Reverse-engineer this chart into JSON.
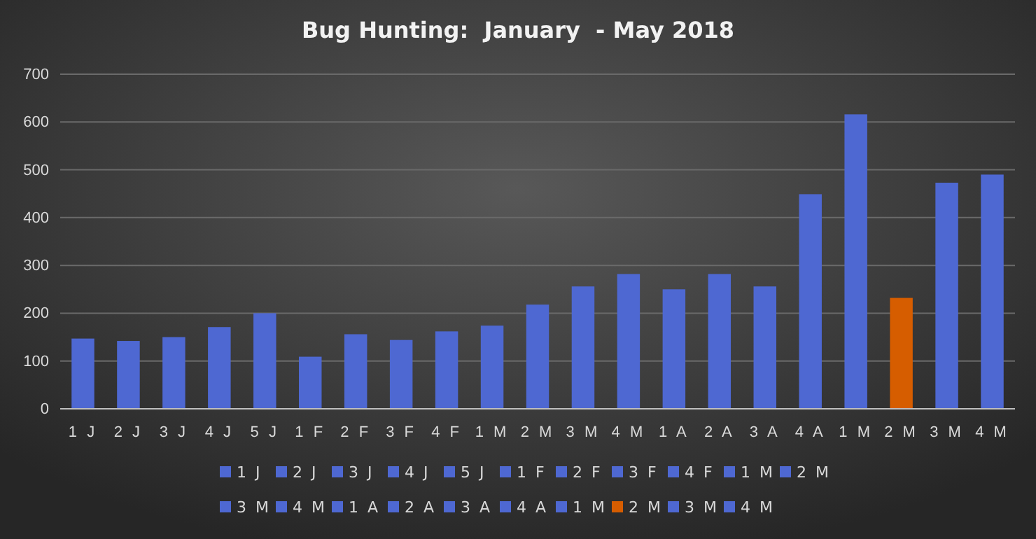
{
  "chart_data": {
    "type": "bar",
    "title": "Bug Hunting:  January  - May 2018",
    "stacked": true,
    "categories": [
      "1 J",
      "2 J",
      "3 J",
      "4 J",
      "5 J",
      "1 F",
      "2 F",
      "3 F",
      "4 F",
      "1 M",
      "2 M",
      "3 M",
      "4 M",
      "1 A",
      "2 A",
      "3 A",
      "4 A",
      "1 M",
      "2 M",
      "3 M",
      "4 M"
    ],
    "series": [
      {
        "name": "1 J",
        "color": "#4e68d2",
        "values": [
          147,
          null,
          null,
          null,
          null,
          null,
          null,
          null,
          null,
          null,
          null,
          null,
          null,
          null,
          null,
          null,
          null,
          null,
          null,
          null,
          null
        ]
      },
      {
        "name": "2 J",
        "color": "#4e68d2",
        "values": [
          null,
          142,
          null,
          null,
          null,
          null,
          null,
          null,
          null,
          null,
          null,
          null,
          null,
          null,
          null,
          null,
          null,
          null,
          null,
          null,
          null
        ]
      },
      {
        "name": "3 J",
        "color": "#4e68d2",
        "values": [
          null,
          null,
          150,
          null,
          null,
          null,
          null,
          null,
          null,
          null,
          null,
          null,
          null,
          null,
          null,
          null,
          null,
          null,
          null,
          null,
          null
        ]
      },
      {
        "name": "4 J",
        "color": "#4e68d2",
        "values": [
          null,
          null,
          null,
          171,
          null,
          null,
          null,
          null,
          null,
          null,
          null,
          null,
          null,
          null,
          null,
          null,
          null,
          null,
          null,
          null,
          null
        ]
      },
      {
        "name": "5 J",
        "color": "#4e68d2",
        "values": [
          null,
          null,
          null,
          null,
          200,
          null,
          null,
          null,
          null,
          null,
          null,
          null,
          null,
          null,
          null,
          null,
          null,
          null,
          null,
          null,
          null
        ]
      },
      {
        "name": "1 F",
        "color": "#4e68d2",
        "values": [
          null,
          null,
          null,
          null,
          null,
          109,
          null,
          null,
          null,
          null,
          null,
          null,
          null,
          null,
          null,
          null,
          null,
          null,
          null,
          null,
          null
        ]
      },
      {
        "name": "2 F",
        "color": "#4e68d2",
        "values": [
          null,
          null,
          null,
          null,
          null,
          null,
          156,
          null,
          null,
          null,
          null,
          null,
          null,
          null,
          null,
          null,
          null,
          null,
          null,
          null,
          null
        ]
      },
      {
        "name": "3 F",
        "color": "#4e68d2",
        "values": [
          null,
          null,
          null,
          null,
          null,
          null,
          null,
          144,
          null,
          null,
          null,
          null,
          null,
          null,
          null,
          null,
          null,
          null,
          null,
          null,
          null
        ]
      },
      {
        "name": "4 F",
        "color": "#4e68d2",
        "values": [
          null,
          null,
          null,
          null,
          null,
          null,
          null,
          null,
          162,
          null,
          null,
          null,
          null,
          null,
          null,
          null,
          null,
          null,
          null,
          null,
          null
        ]
      },
      {
        "name": "1 M",
        "color": "#4e68d2",
        "values": [
          null,
          null,
          null,
          null,
          null,
          null,
          null,
          null,
          null,
          174,
          null,
          null,
          null,
          null,
          null,
          null,
          null,
          null,
          null,
          null,
          null
        ]
      },
      {
        "name": "2 M",
        "color": "#4e68d2",
        "values": [
          null,
          null,
          null,
          null,
          null,
          null,
          null,
          null,
          null,
          null,
          218,
          null,
          null,
          null,
          null,
          null,
          null,
          null,
          null,
          null,
          null
        ]
      },
      {
        "name": "3 M",
        "color": "#4e68d2",
        "values": [
          null,
          null,
          null,
          null,
          null,
          null,
          null,
          null,
          null,
          null,
          null,
          256,
          null,
          null,
          null,
          null,
          null,
          null,
          null,
          null,
          null
        ]
      },
      {
        "name": "4 M",
        "color": "#4e68d2",
        "values": [
          null,
          null,
          null,
          null,
          null,
          null,
          null,
          null,
          null,
          null,
          null,
          null,
          282,
          null,
          null,
          null,
          null,
          null,
          null,
          null,
          null
        ]
      },
      {
        "name": "1 A",
        "color": "#4e68d2",
        "values": [
          null,
          null,
          null,
          null,
          null,
          null,
          null,
          null,
          null,
          null,
          null,
          null,
          null,
          250,
          null,
          null,
          null,
          null,
          null,
          null,
          null
        ]
      },
      {
        "name": "2 A",
        "color": "#4e68d2",
        "values": [
          null,
          null,
          null,
          null,
          null,
          null,
          null,
          null,
          null,
          null,
          null,
          null,
          null,
          null,
          282,
          null,
          null,
          null,
          null,
          null,
          null
        ]
      },
      {
        "name": "3 A",
        "color": "#4e68d2",
        "values": [
          null,
          null,
          null,
          null,
          null,
          null,
          null,
          null,
          null,
          null,
          null,
          null,
          null,
          null,
          null,
          256,
          null,
          null,
          null,
          null,
          null
        ]
      },
      {
        "name": "4 A",
        "color": "#4e68d2",
        "values": [
          null,
          null,
          null,
          null,
          null,
          null,
          null,
          null,
          null,
          null,
          null,
          null,
          null,
          null,
          null,
          null,
          449,
          null,
          null,
          null,
          null
        ]
      },
      {
        "name": "1 M",
        "color": "#4e68d2",
        "values": [
          null,
          null,
          null,
          null,
          null,
          null,
          null,
          null,
          null,
          null,
          null,
          null,
          null,
          null,
          null,
          null,
          null,
          616,
          null,
          null,
          null
        ]
      },
      {
        "name": "2 M",
        "color": "#d65d00",
        "values": [
          null,
          null,
          null,
          null,
          null,
          null,
          null,
          null,
          null,
          null,
          null,
          null,
          null,
          null,
          null,
          null,
          null,
          null,
          232,
          null,
          null
        ]
      },
      {
        "name": "3 M",
        "color": "#4e68d2",
        "values": [
          null,
          null,
          null,
          null,
          null,
          null,
          null,
          null,
          null,
          null,
          null,
          null,
          null,
          null,
          null,
          null,
          null,
          null,
          null,
          473,
          null
        ]
      },
      {
        "name": "4 M",
        "color": "#4e68d2",
        "values": [
          null,
          null,
          null,
          null,
          null,
          null,
          null,
          null,
          null,
          null,
          null,
          null,
          null,
          null,
          null,
          null,
          null,
          null,
          null,
          null,
          490
        ]
      }
    ],
    "ylim": [
      0,
      700
    ],
    "yticks": [
      0,
      100,
      200,
      300,
      400,
      500,
      600,
      700
    ],
    "grid": "y",
    "legend": "bottom"
  }
}
